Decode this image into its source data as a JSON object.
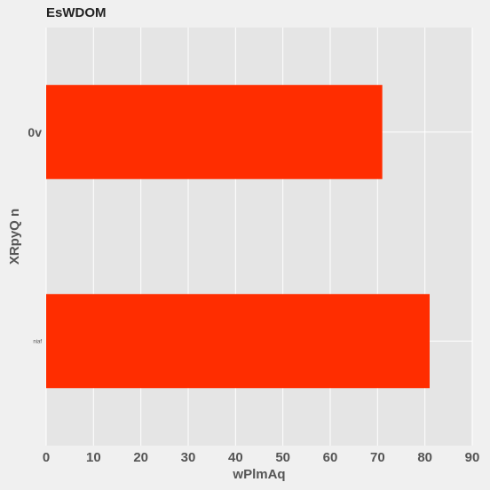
{
  "chart_data": {
    "type": "bar",
    "orientation": "horizontal",
    "title": "EsWDOM",
    "xlabel": "wPlmAq",
    "ylabel": "XRpyQ n",
    "categories": [
      "0v",
      "niaf"
    ],
    "values": [
      71,
      81
    ],
    "xlim": [
      0,
      90
    ],
    "xticks": [
      "0",
      "10",
      "20",
      "30",
      "40",
      "50",
      "60",
      "70",
      "80",
      "90"
    ],
    "grid": true,
    "legend": "none",
    "colors": {
      "bar": "#ff2d00",
      "plot_background": "#e5e5e5",
      "page_background": "#f0f0f0",
      "grid": "#ffffff"
    }
  }
}
